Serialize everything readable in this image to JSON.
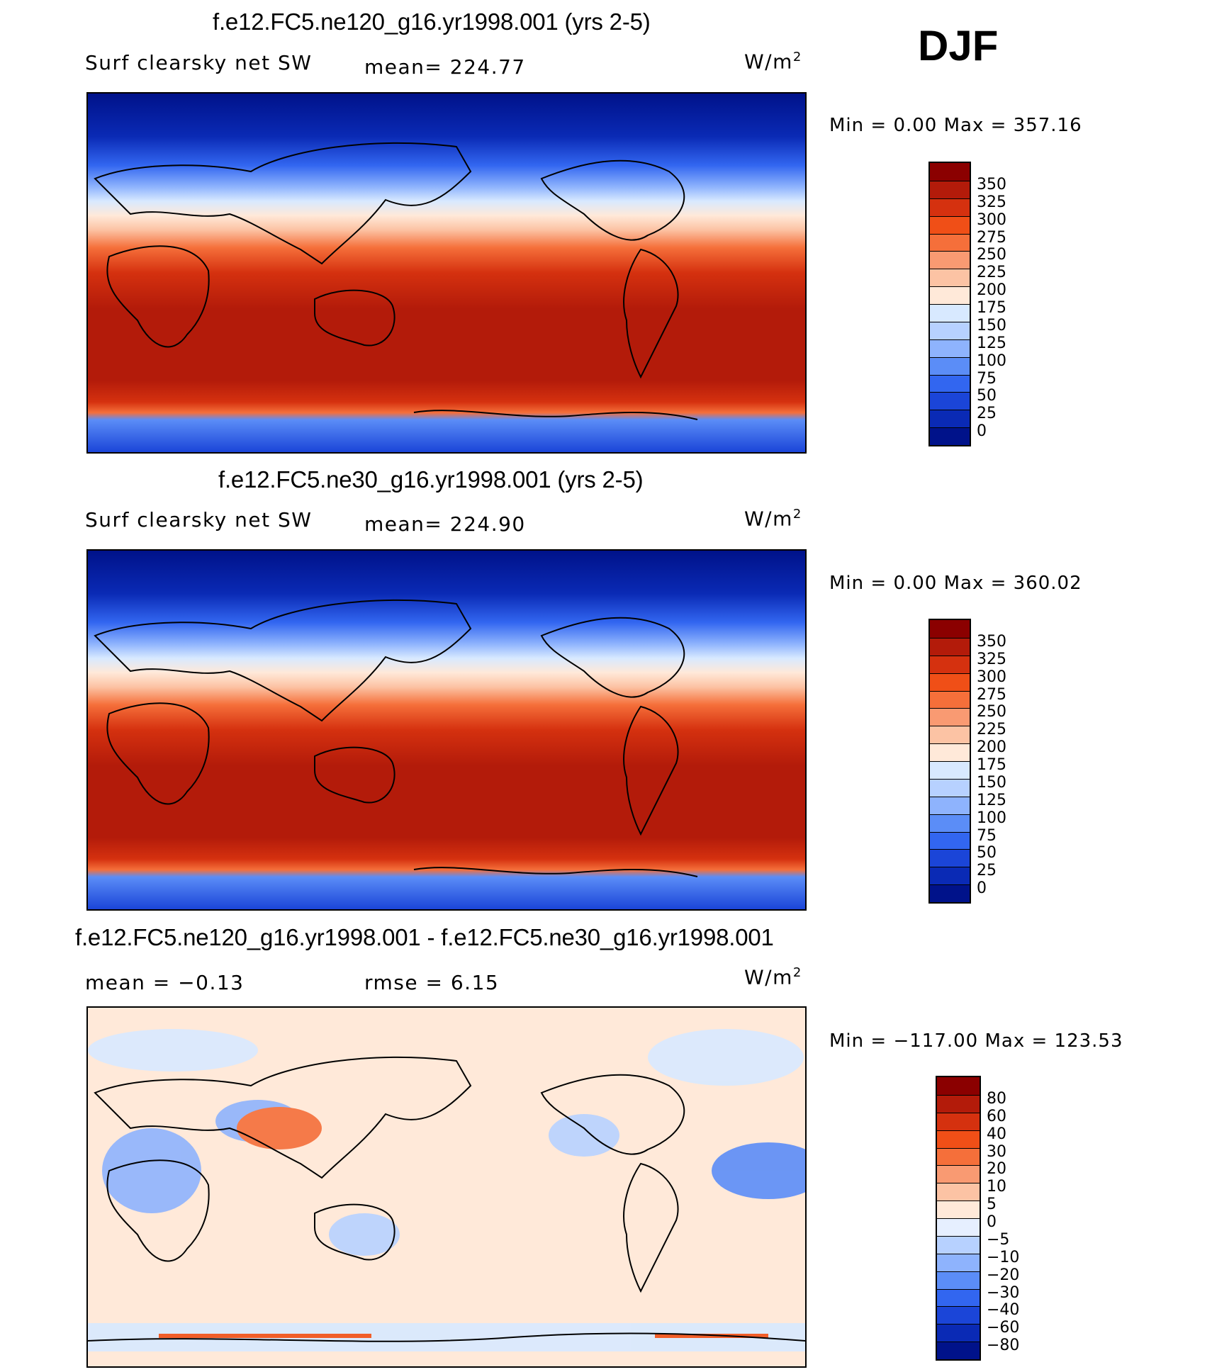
{
  "season": "DJF",
  "panels": [
    {
      "title": "f.e12.FC5.ne120_g16.yr1998.001 (yrs 2-5)",
      "variable": "Surf clearsky net SW",
      "stat1": "mean= 224.77",
      "stat2": "",
      "units": "W/m",
      "units_exp": "2",
      "minmax": "Min =    0.00 Max = 357.16",
      "colorbar": {
        "levels": [
          "350",
          "325",
          "300",
          "275",
          "250",
          "225",
          "200",
          "175",
          "150",
          "125",
          "100",
          "75",
          "50",
          "25",
          "0"
        ],
        "colors": [
          "#8b0000",
          "#b31b0a",
          "#d5310f",
          "#f04f17",
          "#f56f3a",
          "#f99a72",
          "#fcc3a4",
          "#ffe9d9",
          "#d8e9ff",
          "#b7d1ff",
          "#8eb3fd",
          "#5b8df7",
          "#3266f0",
          "#1b45d8",
          "#0a2ab5",
          "#00128a"
        ]
      }
    },
    {
      "title": "f.e12.FC5.ne30_g16.yr1998.001 (yrs 2-5)",
      "variable": "Surf clearsky net SW",
      "stat1": "mean= 224.90",
      "stat2": "",
      "units": "W/m",
      "units_exp": "2",
      "minmax": "Min =    0.00 Max = 360.02",
      "colorbar": {
        "levels": [
          "350",
          "325",
          "300",
          "275",
          "250",
          "225",
          "200",
          "175",
          "150",
          "125",
          "100",
          "75",
          "50",
          "25",
          "0"
        ],
        "colors": [
          "#8b0000",
          "#b31b0a",
          "#d5310f",
          "#f04f17",
          "#f56f3a",
          "#f99a72",
          "#fcc3a4",
          "#ffe9d9",
          "#d8e9ff",
          "#b7d1ff",
          "#8eb3fd",
          "#5b8df7",
          "#3266f0",
          "#1b45d8",
          "#0a2ab5",
          "#00128a"
        ]
      }
    },
    {
      "title": "f.e12.FC5.ne120_g16.yr1998.001 - f.e12.FC5.ne30_g16.yr1998.001",
      "variable": "",
      "stat1": "mean =   −0.13",
      "stat2": "rmse =     6.15",
      "units": "W/m",
      "units_exp": "2",
      "minmax": "Min = −117.00 Max = 123.53",
      "colorbar": {
        "levels": [
          "80",
          "60",
          "40",
          "30",
          "20",
          "10",
          "5",
          "0",
          "−5",
          "−10",
          "−20",
          "−30",
          "−40",
          "−60",
          "−80"
        ],
        "colors": [
          "#8b0000",
          "#b31b0a",
          "#d5310f",
          "#f04f17",
          "#f56f3a",
          "#f99a72",
          "#fcc3a4",
          "#ffe9d9",
          "#e6efff",
          "#b7d1ff",
          "#8eb3fd",
          "#5b8df7",
          "#3266f0",
          "#1b45d8",
          "#0a2ab5",
          "#00128a"
        ]
      }
    }
  ]
}
